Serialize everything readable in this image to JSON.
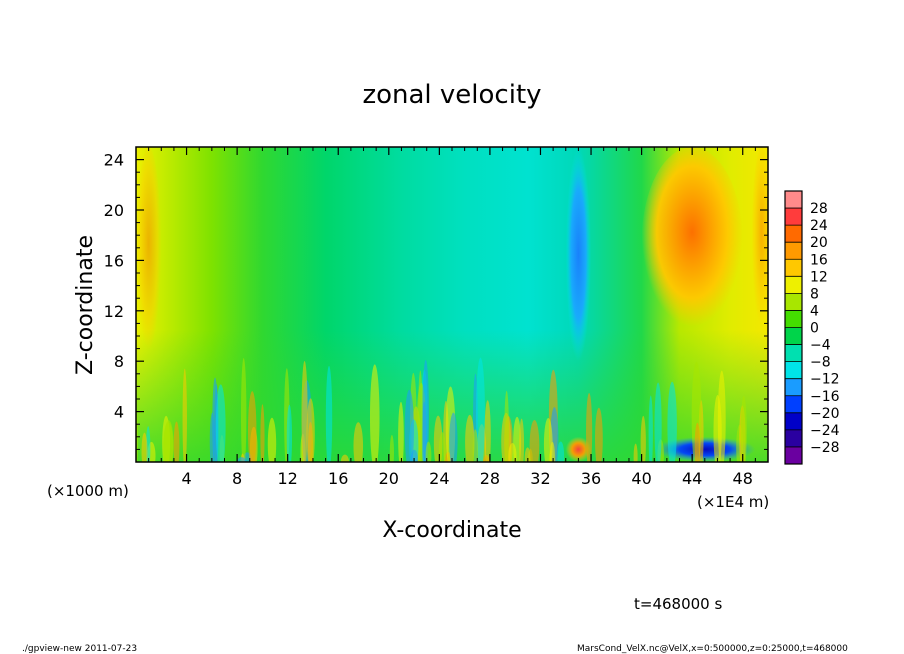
{
  "chart_data": {
    "type": "heatmap",
    "title": "zonal velocity",
    "xlabel": "X-coordinate",
    "ylabel": "Z-coordinate",
    "x_unit_left": "(×1000 m)",
    "x_unit_right": "(×1E4 m)",
    "xlim": [
      0,
      50
    ],
    "ylim": [
      0,
      25
    ],
    "x_ticks": [
      4,
      8,
      12,
      16,
      20,
      24,
      28,
      32,
      36,
      40,
      44,
      48
    ],
    "y_ticks": [
      4,
      8,
      12,
      16,
      20,
      24
    ],
    "colorbar": {
      "levels": [
        28,
        24,
        20,
        16,
        12,
        8,
        4,
        0,
        -4,
        -8,
        -12,
        -16,
        -20,
        -24,
        -28
      ],
      "colors": [
        "#ff8a8a",
        "#ff3c3c",
        "#ff6a00",
        "#ff9a00",
        "#ffc800",
        "#eef000",
        "#a8e600",
        "#44dd00",
        "#00d44a",
        "#00e0b0",
        "#00e4e8",
        "#1a9cff",
        "#0040ff",
        "#0000c8",
        "#2a00a0",
        "#6a00a0"
      ]
    },
    "field_summary": {
      "background_value": -4,
      "features": [
        {
          "name": "warm jet",
          "x_range": [
            40,
            48
          ],
          "z_range": [
            10,
            25
          ],
          "peak_value": 16
        },
        {
          "name": "cold column",
          "x_range": [
            34,
            36
          ],
          "z_range": [
            8,
            25
          ],
          "peak_value": -14
        },
        {
          "name": "near-surface cold pool",
          "x_range": [
            41,
            49
          ],
          "z_range": [
            0,
            2
          ],
          "peak_value": -22
        },
        {
          "name": "near-surface warm spike",
          "x_range": [
            34,
            36
          ],
          "z_range": [
            0,
            2
          ],
          "peak_value": 20
        },
        {
          "name": "west warm band",
          "x_range": [
            0,
            2
          ],
          "z_range": [
            8,
            25
          ],
          "peak_value": 8
        },
        {
          "name": "east warm band",
          "x_range": [
            49,
            50
          ],
          "z_range": [
            10,
            25
          ],
          "peak_value": 10
        }
      ]
    },
    "time_label": "t=468000 s"
  },
  "footer": {
    "left": "./gpview-new   2011-07-23",
    "right": "MarsCond_VelX.nc@VelX,x=0:500000,z=0:25000,t=468000"
  }
}
